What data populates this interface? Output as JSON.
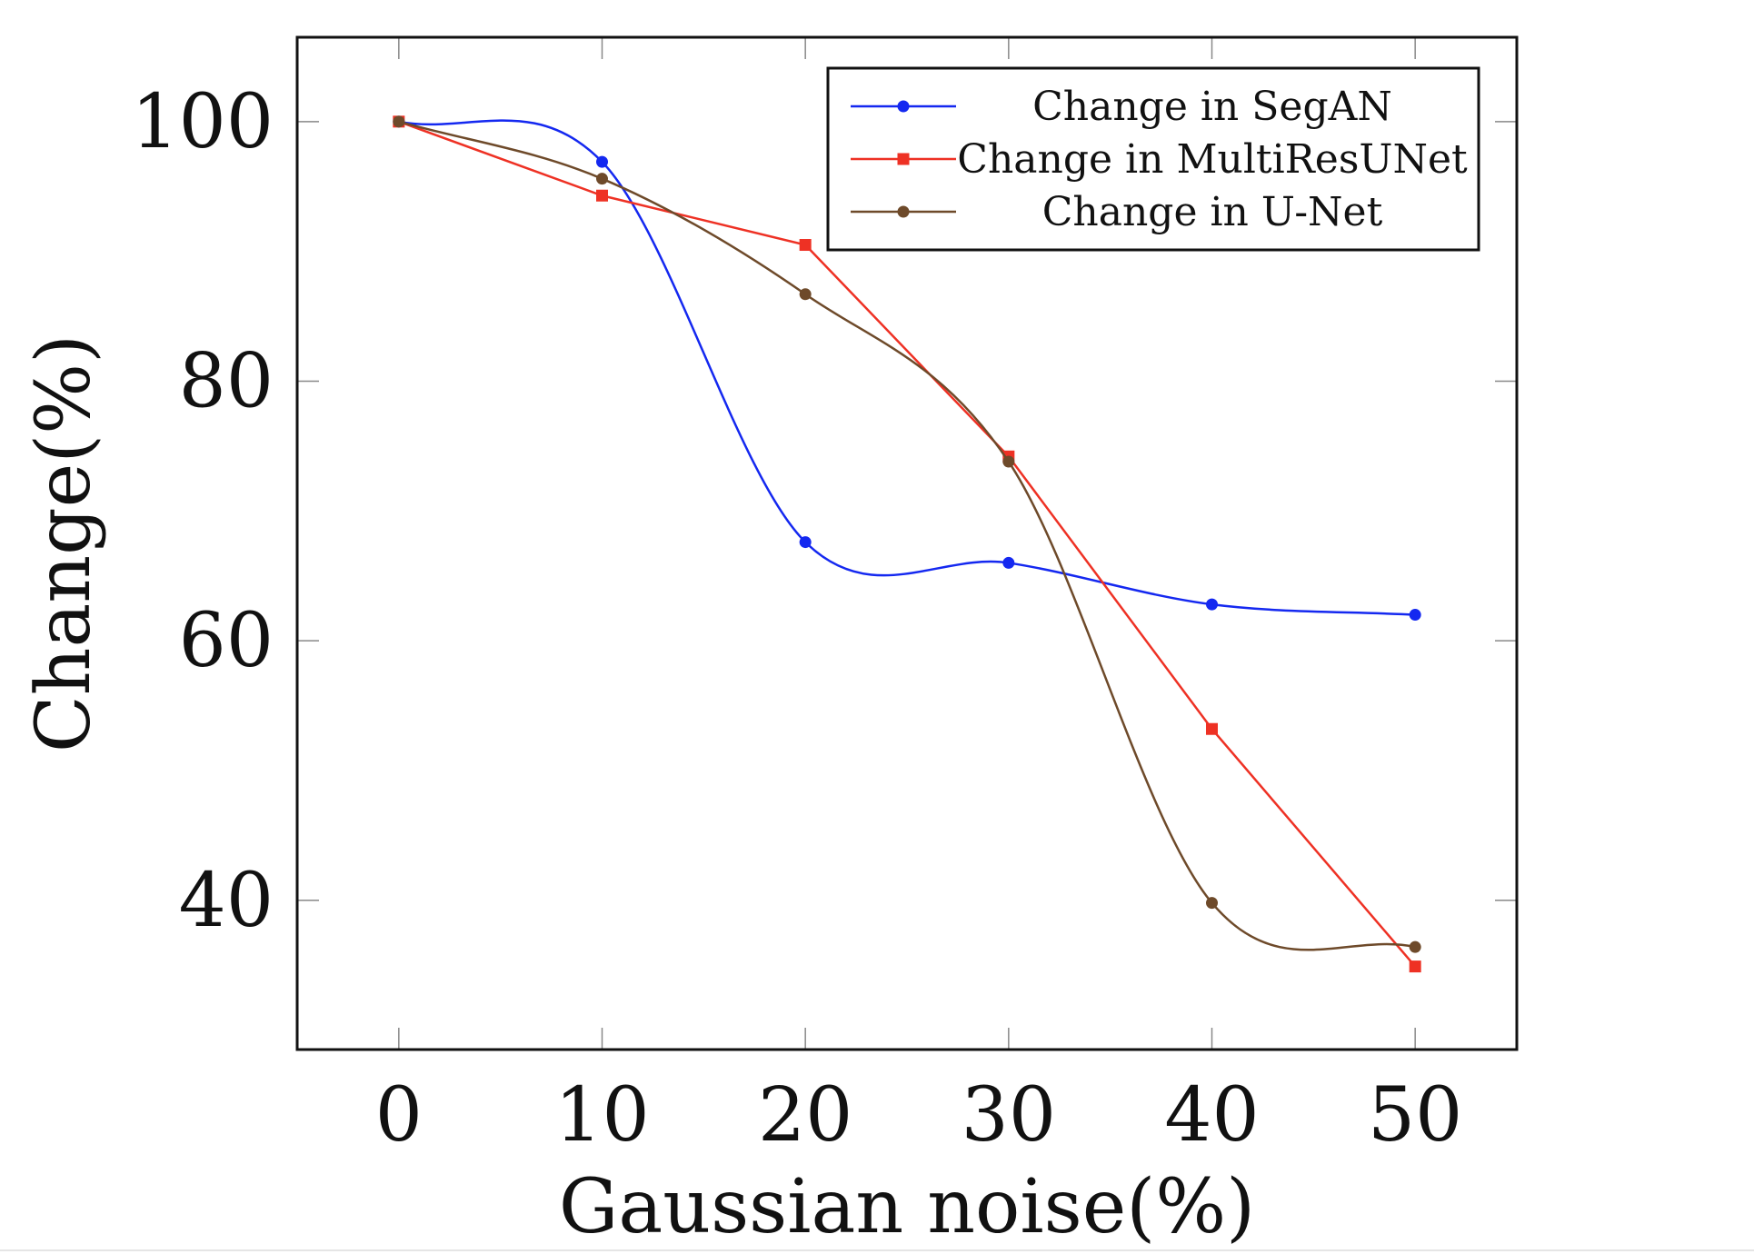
{
  "chart_data": {
    "type": "line",
    "title": "",
    "xlabel": "Gaussian noise(%)",
    "ylabel": "Change(%)",
    "x": [
      0,
      10,
      20,
      30,
      40,
      50
    ],
    "xticks": [
      "0",
      "10",
      "20",
      "30",
      "40",
      "50"
    ],
    "yticks": [
      "40",
      "60",
      "80",
      "100"
    ],
    "xlim": [
      -5,
      55
    ],
    "ylim": [
      28.5,
      106.5
    ],
    "grid": false,
    "legend_position": "top-right",
    "series": [
      {
        "name": "Change in SegAN",
        "values": [
          100,
          96.9,
          67.6,
          66.0,
          62.8,
          62.0
        ],
        "color": "#1428f0",
        "marker": "circle",
        "smooth": true
      },
      {
        "name": "Change in MultiResUNet",
        "values": [
          100,
          94.3,
          90.5,
          74.2,
          53.2,
          34.9
        ],
        "color": "#ee3124",
        "marker": "square",
        "smooth": false
      },
      {
        "name": "Change in U-Net",
        "values": [
          100,
          95.6,
          86.7,
          73.8,
          39.8,
          36.4
        ],
        "color": "#6e4a2a",
        "marker": "circle",
        "smooth": true
      }
    ]
  }
}
